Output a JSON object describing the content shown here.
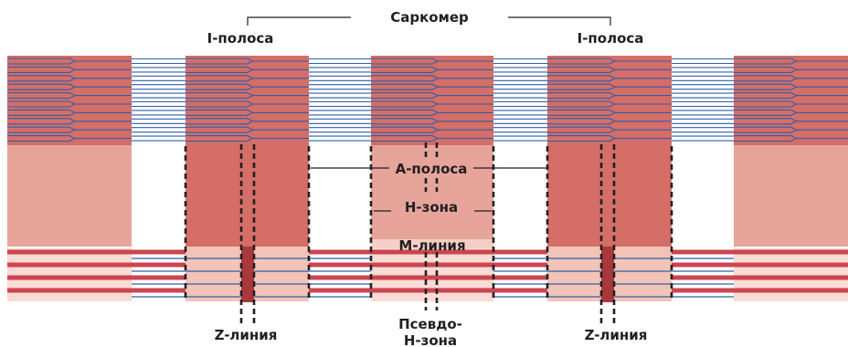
{
  "labels": {
    "sarcomere": "Саркомер",
    "i_band_left": "I-полоса",
    "i_band_right": "I-полоса",
    "a_band": "А-полоса",
    "h_zone": "Н-зона",
    "m_line": "М-линия",
    "z_line_left": "Z-линия",
    "z_line_right": "Z-линия",
    "pseudo_h_line1": "Псевдо-",
    "pseudo_h_line2": "Н-зона"
  },
  "colors": {
    "thick_filament_dark": "#d46e67",
    "thick_filament_light": "#e6a49b",
    "m_band_pale": "#f4cfc6",
    "thin_filament_blue": "#2f5fa8",
    "red_stripe": "#cc4550",
    "z_disk": "#a8383c",
    "outline": "#231f20"
  }
}
